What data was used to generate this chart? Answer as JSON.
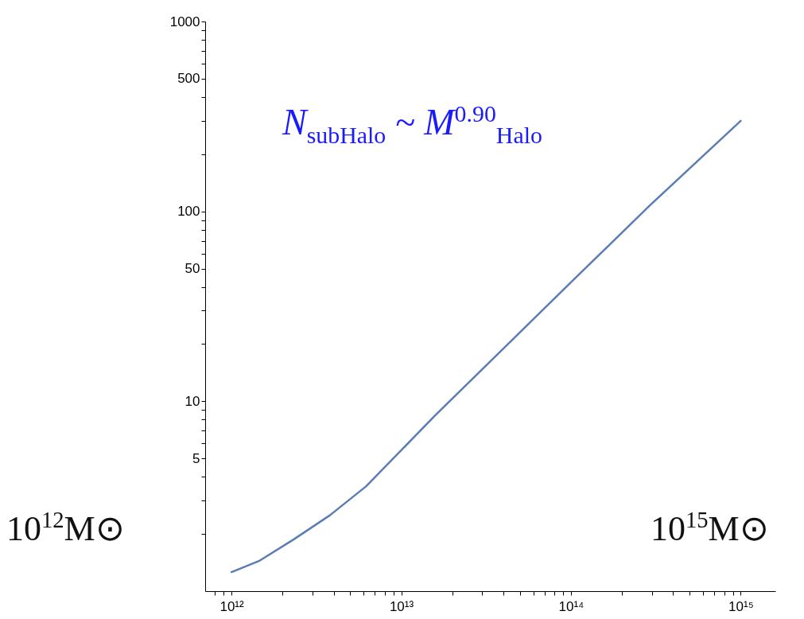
{
  "chart_data": {
    "type": "line",
    "log": "xy",
    "grid": false,
    "marker": "none",
    "line_style": "solid",
    "x": [
      1000000000000.0,
      1450000000000.0,
      2320000000000.0,
      3800000000000.0,
      6200000000000.0,
      15800000000000.0,
      42000000000000.0,
      110000000000000.0,
      290000000000000.0,
      1000000000000000.0
    ],
    "series": [
      {
        "color": "#5b7db5",
        "values": [
          1.26,
          1.44,
          1.87,
          2.51,
          3.56,
          8.4,
          19.8,
          46,
          107,
          300
        ]
      }
    ],
    "xlim": [
      700000000000.0,
      1600000000000000.0
    ],
    "xticks": [
      {
        "value": 800000000000.0,
        "label": null
      },
      {
        "value": 900000000000.0,
        "label": null
      },
      {
        "value": 1000000000000.0,
        "label": "10¹²"
      },
      {
        "value": 2000000000000.0,
        "label": null
      },
      {
        "value": 3000000000000.0,
        "label": null
      },
      {
        "value": 4000000000000.0,
        "label": null
      },
      {
        "value": 5000000000000.0,
        "label": null
      },
      {
        "value": 6000000000000.0,
        "label": null
      },
      {
        "value": 7000000000000.0,
        "label": null
      },
      {
        "value": 8000000000000.0,
        "label": null
      },
      {
        "value": 9000000000000.0,
        "label": null
      },
      {
        "value": 10000000000000.0,
        "label": "10¹³"
      },
      {
        "value": 20000000000000.0,
        "label": null
      },
      {
        "value": 30000000000000.0,
        "label": null
      },
      {
        "value": 40000000000000.0,
        "label": null
      },
      {
        "value": 50000000000000.0,
        "label": null
      },
      {
        "value": 60000000000000.0,
        "label": null
      },
      {
        "value": 70000000000000.0,
        "label": null
      },
      {
        "value": 80000000000000.0,
        "label": null
      },
      {
        "value": 90000000000000.0,
        "label": null
      },
      {
        "value": 100000000000000.0,
        "label": "10¹⁴"
      },
      {
        "value": 200000000000000.0,
        "label": null
      },
      {
        "value": 300000000000000.0,
        "label": null
      },
      {
        "value": 400000000000000.0,
        "label": null
      },
      {
        "value": 500000000000000.0,
        "label": null
      },
      {
        "value": 600000000000000.0,
        "label": null
      },
      {
        "value": 700000000000000.0,
        "label": null
      },
      {
        "value": 800000000000000.0,
        "label": null
      },
      {
        "value": 900000000000000.0,
        "label": null
      },
      {
        "value": 1000000000000000.0,
        "label": "10¹⁵"
      }
    ],
    "ylim": [
      1,
      1000
    ],
    "yticks": [
      {
        "value": 2,
        "label": null
      },
      {
        "value": 3,
        "label": null
      },
      {
        "value": 4,
        "label": null
      },
      5,
      {
        "value": 6,
        "label": null
      },
      {
        "value": 7,
        "label": null
      },
      {
        "value": 8,
        "label": null
      },
      {
        "value": 9,
        "label": null
      },
      10,
      {
        "value": 20,
        "label": null
      },
      {
        "value": 30,
        "label": null
      },
      {
        "value": 40,
        "label": null
      },
      50,
      {
        "value": 60,
        "label": null
      },
      {
        "value": 70,
        "label": null
      },
      {
        "value": 80,
        "label": null
      },
      {
        "value": 90,
        "label": null
      },
      100,
      {
        "value": 200,
        "label": null
      },
      {
        "value": 300,
        "label": null
      },
      {
        "value": 400,
        "label": null
      },
      500,
      {
        "value": 600,
        "label": null
      },
      {
        "value": 700,
        "label": null
      },
      {
        "value": 800,
        "label": null
      },
      {
        "value": 900,
        "label": null
      },
      1000
    ],
    "annotations": [
      "N$_{subHalo}$ ~ M$^{0.90}$$_{Halo}$",
      "10$^{12}$M⊙",
      "10$^{15}$M⊙"
    ]
  }
}
